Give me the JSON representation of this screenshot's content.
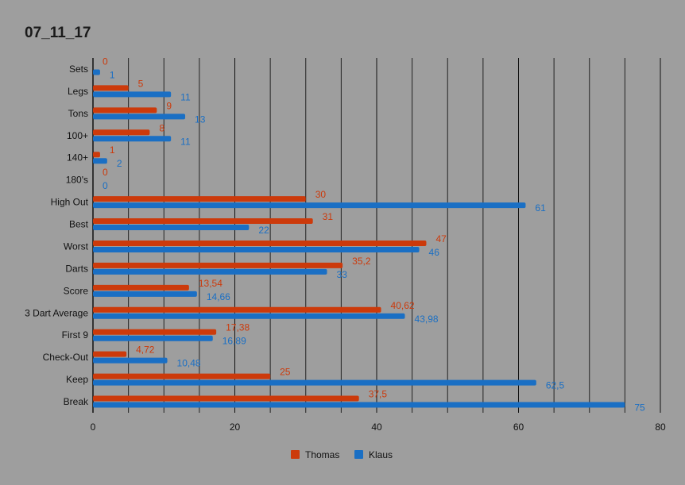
{
  "chart_data": {
    "type": "bar",
    "orientation": "horizontal",
    "title": "07_11_17",
    "categories": [
      "Sets",
      "Legs",
      "Tons",
      "100+",
      "140+",
      "180's",
      "High Out",
      "Best",
      "Worst",
      "Darts",
      "Score",
      "3 Dart Average",
      "First 9",
      "Check-Out",
      "Keep",
      "Break"
    ],
    "series": [
      {
        "name": "Thomas",
        "color": "#cc3a0b",
        "values": [
          0,
          5,
          9,
          8,
          1,
          0,
          30,
          31,
          47,
          35.2,
          13.54,
          40.62,
          17.38,
          4.72,
          25,
          37.5
        ],
        "labels": [
          "0",
          "5",
          "9",
          "8",
          "1",
          "0",
          "30",
          "31",
          "47",
          "35,2",
          "13,54",
          "40,62",
          "17,38",
          "4,72",
          "25",
          "37,5"
        ]
      },
      {
        "name": "Klaus",
        "color": "#1a6fc4",
        "values": [
          1,
          11,
          13,
          11,
          2,
          0,
          61,
          22,
          46,
          33,
          14.66,
          43.98,
          16.89,
          10.48,
          62.5,
          75
        ],
        "labels": [
          "1",
          "11",
          "13",
          "11",
          "2",
          "0",
          "61",
          "22",
          "46",
          "33",
          "14,66",
          "43,98",
          "16,89",
          "10,48",
          "62,5",
          "75"
        ]
      }
    ],
    "xlim": [
      0,
      80
    ],
    "x_ticks": [
      "0",
      "20",
      "40",
      "60",
      "80"
    ],
    "grid": true,
    "legend_position": "bottom"
  }
}
